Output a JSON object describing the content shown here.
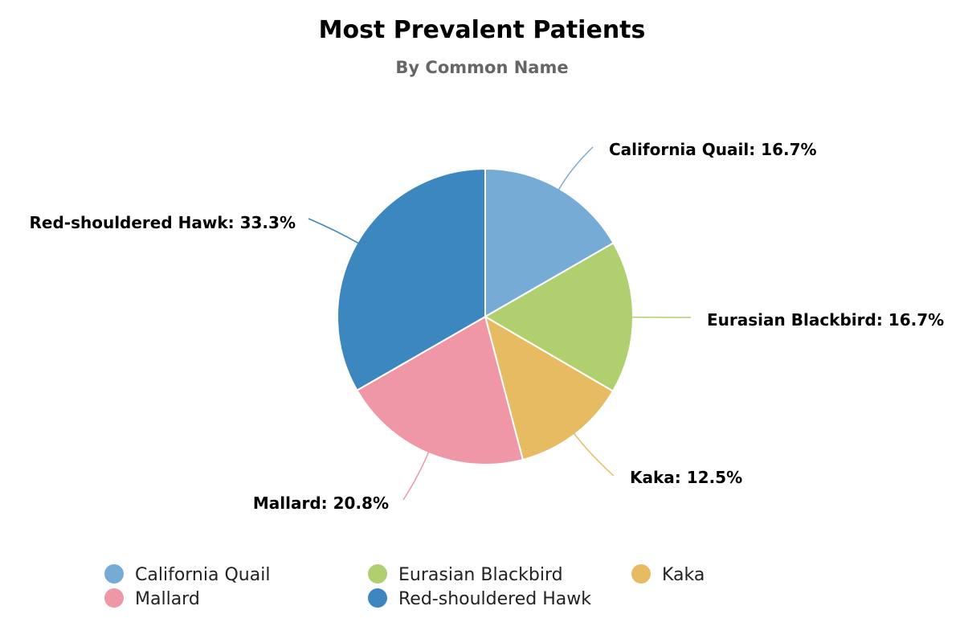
{
  "chart_data": {
    "type": "pie",
    "title": "Most Prevalent Patients",
    "subtitle": "By Common Name",
    "slices": [
      {
        "name": "California Quail",
        "value": 16.7,
        "label": "California Quail: 16.7%",
        "color": "#76abd6"
      },
      {
        "name": "Eurasian Blackbird",
        "value": 16.7,
        "label": "Eurasian Blackbird: 16.7%",
        "color": "#b0cf6f"
      },
      {
        "name": "Kaka",
        "value": 12.5,
        "label": "Kaka: 12.5%",
        "color": "#e6bb61"
      },
      {
        "name": "Mallard",
        "value": 20.8,
        "label": "Mallard: 20.8%",
        "color": "#f097a7"
      },
      {
        "name": "Red-shouldered Hawk",
        "value": 33.3,
        "label": "Red-shouldered Hawk: 33.3%",
        "color": "#3d87c1"
      }
    ],
    "legend_position": "bottom"
  }
}
